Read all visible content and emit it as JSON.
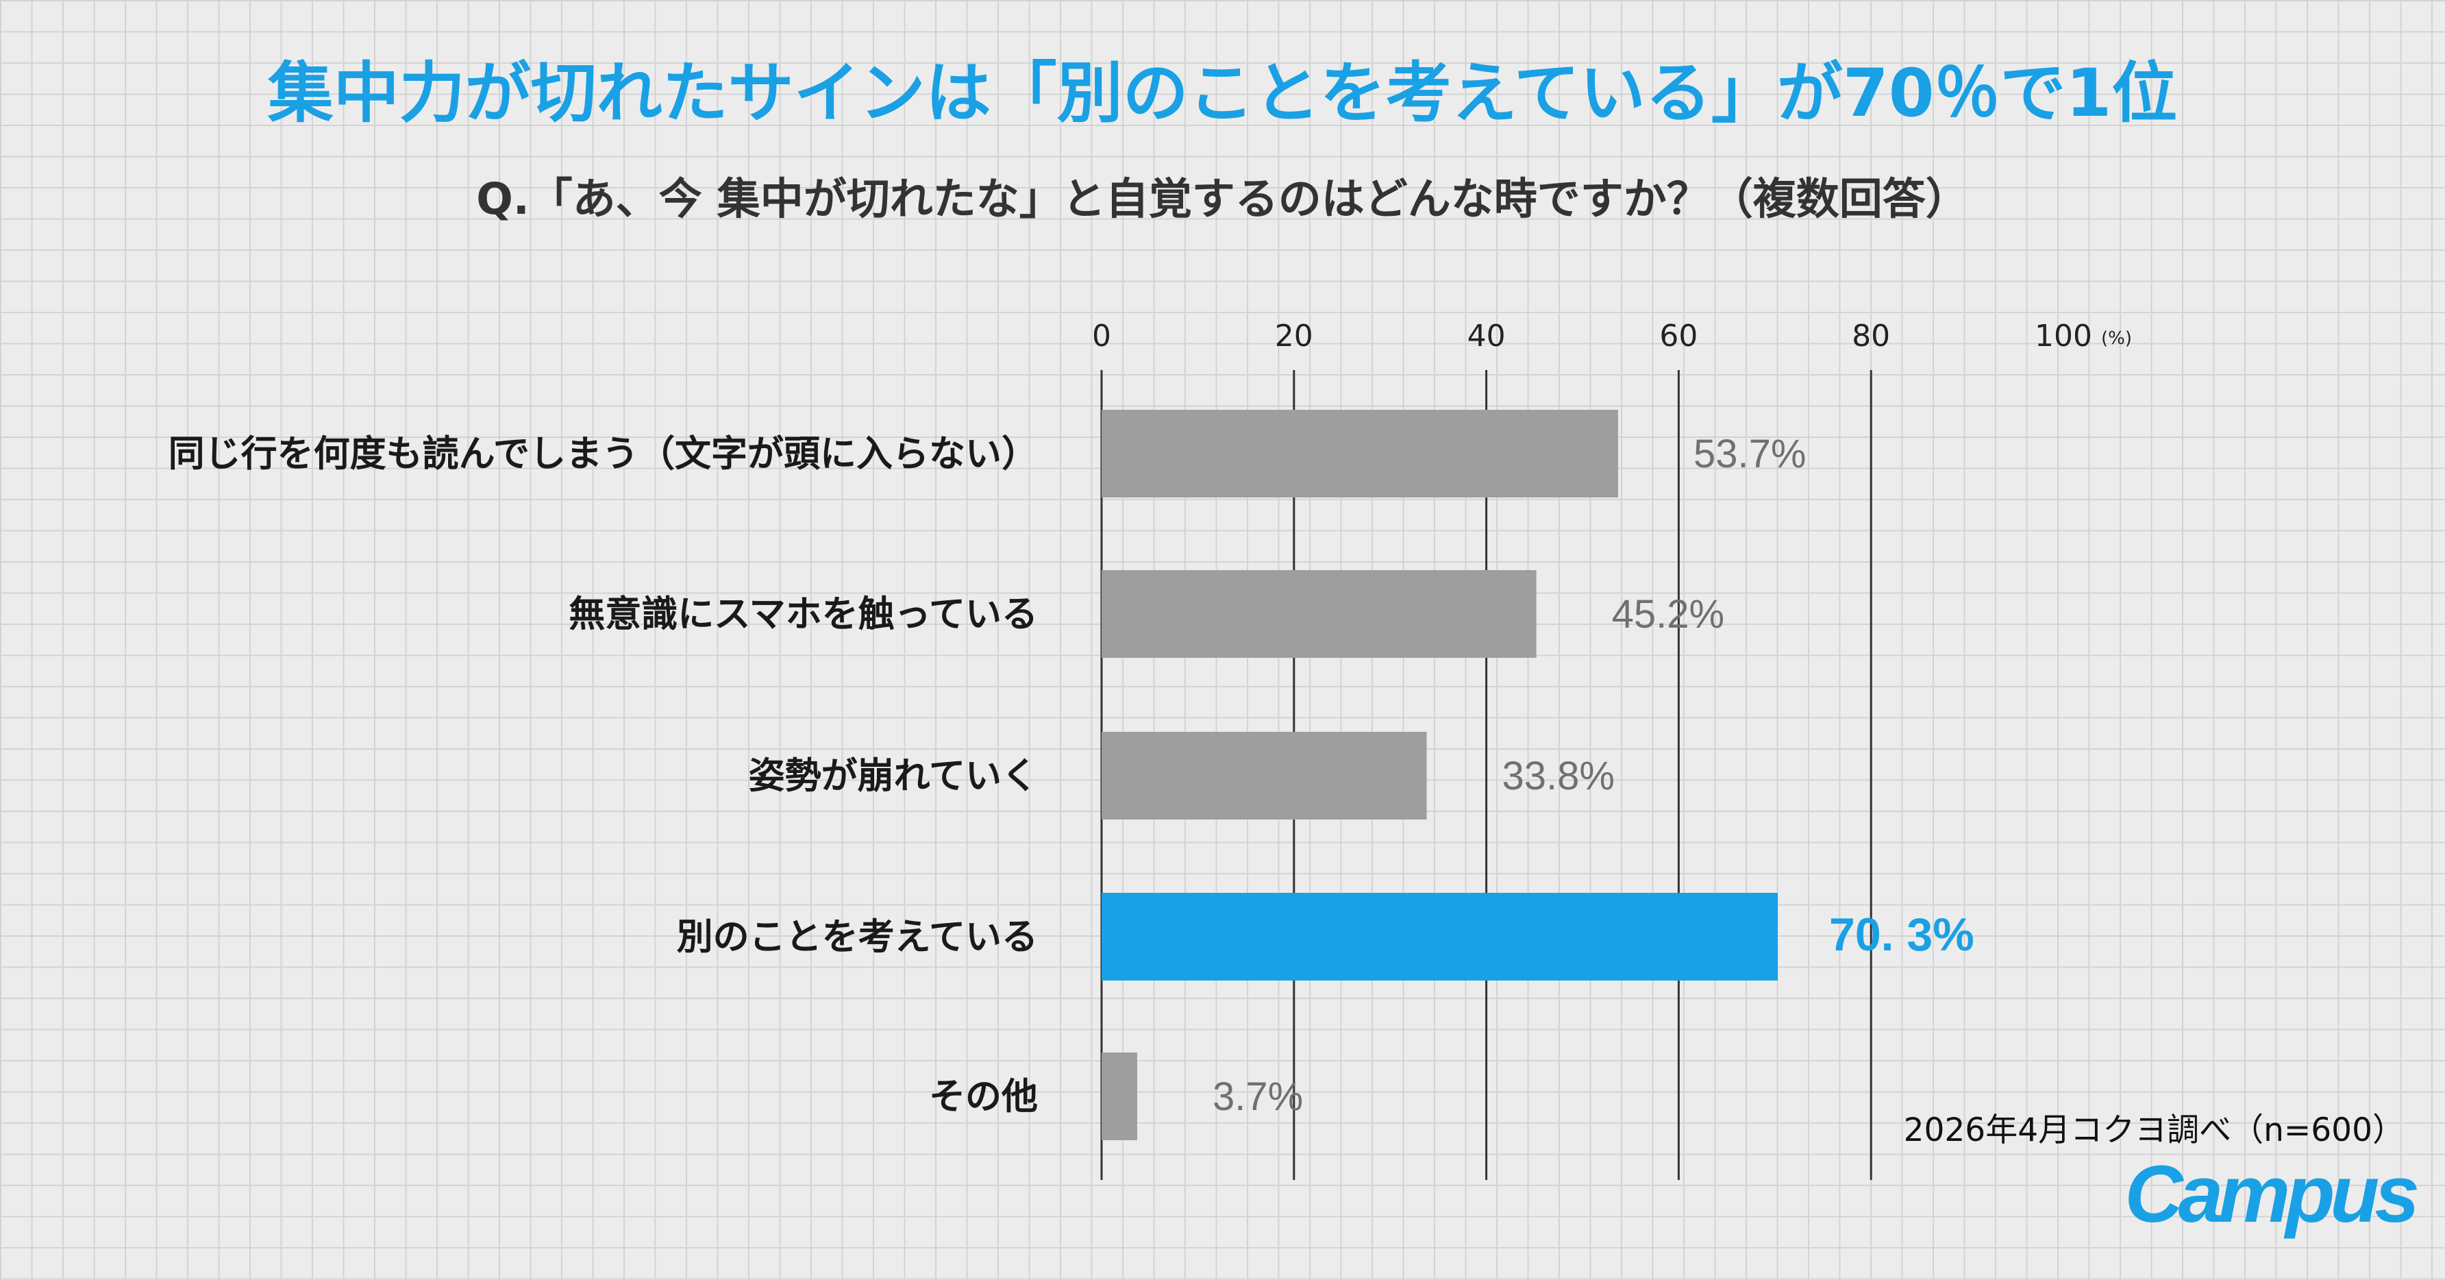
{
  "title": "集中力が切れたサインは「別のことを考えている」が70％で1位",
  "subtitle": "Q.「あ、今 集中が切れたな」と自覚するのはどんな時ですか？（複数回答）",
  "source": "2026年4月コクヨ調べ（n=600）",
  "logo": "Campus",
  "colors": {
    "accent": "#1aa0e4",
    "bar": "#9e9e9e",
    "grid_bg": "#ececec"
  },
  "chart_data": {
    "type": "bar",
    "orientation": "horizontal",
    "title": "集中力が切れたサインは「別のことを考えている」が70％で1位",
    "subtitle": "Q.「あ、今 集中が切れたな」と自覚するのはどんな時ですか？（複数回答）",
    "xlim": [
      0,
      100
    ],
    "xticks": [
      "0",
      "20",
      "40",
      "60",
      "80",
      "100"
    ],
    "x_unit": "(%)",
    "grid": true,
    "highlight_index": 3,
    "categories": [
      "同じ行を何度も読んでしまう（文字が頭に入らない）",
      "無意識にスマホを触っている",
      "姿勢が崩れていく",
      "別のことを考えている",
      "その他"
    ],
    "values": [
      53.7,
      45.2,
      33.8,
      70.3,
      3.7
    ],
    "value_labels": [
      "53.7%",
      "45.2%",
      "33.8%",
      "70. 3%",
      "3.7%"
    ]
  }
}
